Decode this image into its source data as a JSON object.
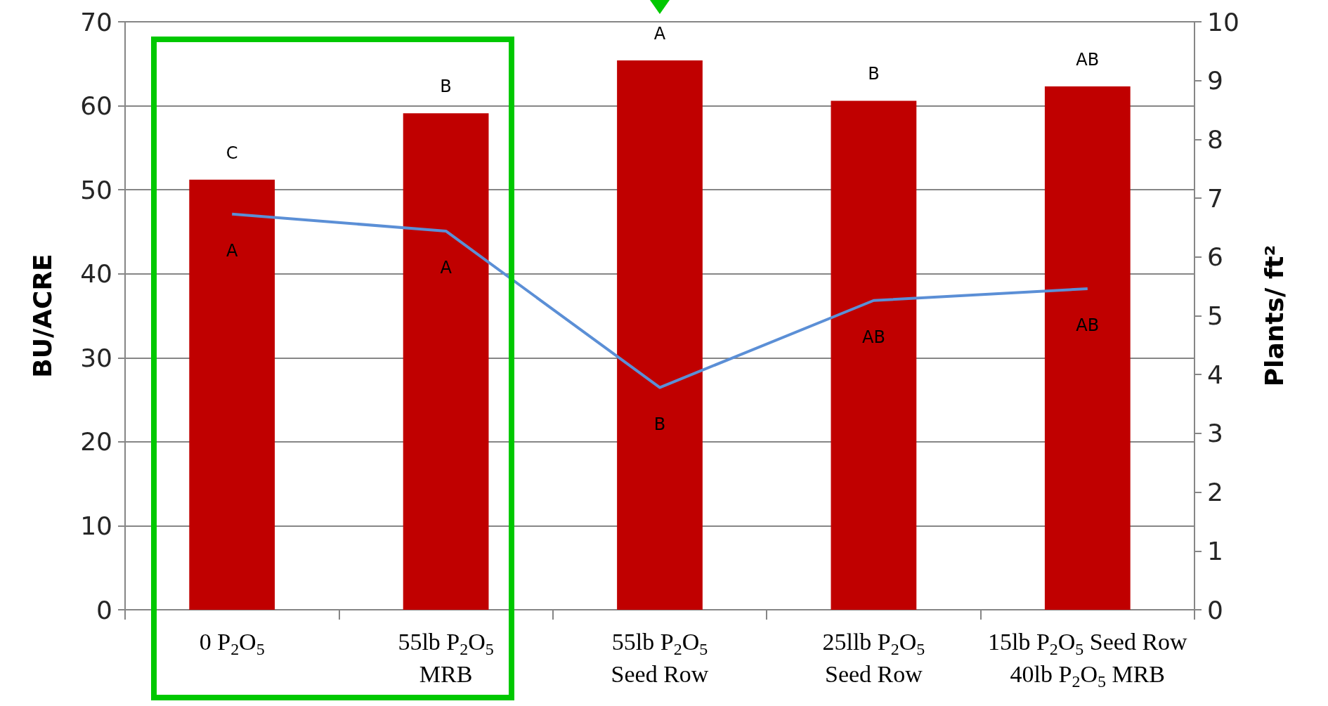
{
  "chart_data": {
    "type": "bar",
    "ylabel": "BU/ACRE",
    "y2label": "Plants/ ft²",
    "categories": [
      "0 P$_{2}$O$_{5}$",
      "55lb P$_{2}$O$_{5}$\nMRB",
      "55lb P$_{2}$O$_{5}$\nSeed Row",
      "25llb P$_{2}$O$_{5}$\nSeed Row",
      "15lb P$_{2}$O$_{5}$ Seed Row\n40lb P$_{2}$O$_{5}$ MRB"
    ],
    "series": [
      {
        "color": "#c00000",
        "values": [
          51.2,
          59.1,
          65.4,
          60.6,
          62.3
        ],
        "value_labels": [
          "C",
          "B",
          "A",
          "B",
          "AB"
        ]
      },
      {
        "type": "line",
        "axis": "y2",
        "color": "#5b8fd6",
        "marker": "none",
        "values": [
          6.73,
          6.44,
          3.78,
          5.26,
          5.46
        ],
        "value_labels": [
          "A",
          "A",
          "B",
          "AB",
          "AB"
        ]
      }
    ],
    "ylim": [
      0,
      70
    ],
    "yticks": [
      0,
      10,
      20,
      30,
      40,
      50,
      60,
      70
    ],
    "y2lim": [
      0,
      10
    ],
    "y2ticks": [
      0,
      1,
      2,
      3,
      4,
      5,
      6,
      7,
      8,
      9,
      10
    ],
    "grid": "y"
  }
}
